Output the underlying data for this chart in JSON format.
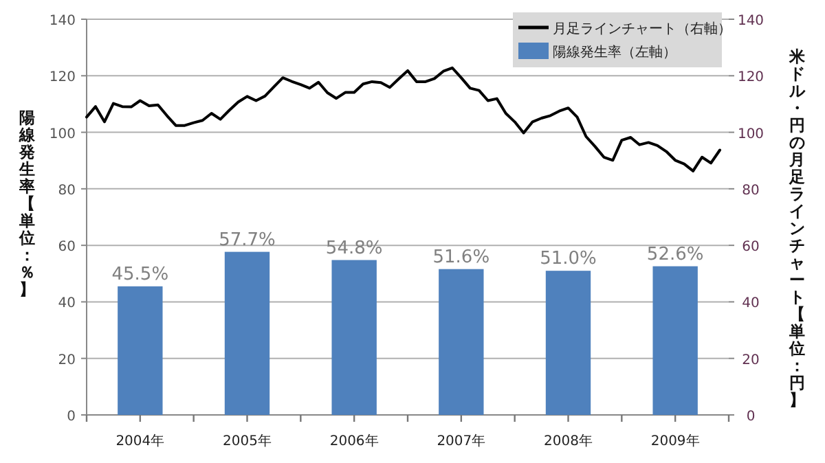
{
  "chart_data": {
    "type": "bar",
    "ylabel": "陽線発生率【単位：％】",
    "y2label": "米ドル・円の月足ラインチャート【単位：円】",
    "xlim": [
      "2004-01",
      "2010-01"
    ],
    "xticks": [
      {
        "value": "2004-01",
        "label": null
      },
      {
        "value": "2004-07",
        "label": "2004年"
      },
      {
        "value": "2005-01",
        "label": null
      },
      {
        "value": "2005-07",
        "label": "2005年"
      },
      {
        "value": "2006-01",
        "label": null
      },
      {
        "value": "2006-07",
        "label": "2006年"
      },
      {
        "value": "2007-01",
        "label": null
      },
      {
        "value": "2007-07",
        "label": "2007年"
      },
      {
        "value": "2008-01",
        "label": null
      },
      {
        "value": "2008-07",
        "label": "2008年"
      },
      {
        "value": "2009-01",
        "label": null
      },
      {
        "value": "2009-07",
        "label": "2009年"
      },
      {
        "value": "2010-01",
        "label": null
      }
    ],
    "series": [
      {
        "name": "月足ラインチャート（右軸）",
        "type": "line",
        "axis": "y2",
        "color": "#000000",
        "x": [
          "2004-01",
          "2004-02",
          "2004-03",
          "2004-04",
          "2004-05",
          "2004-06",
          "2004-07",
          "2004-08",
          "2004-09",
          "2004-10",
          "2004-11",
          "2004-12",
          "2005-01",
          "2005-02",
          "2005-03",
          "2005-04",
          "2005-05",
          "2005-06",
          "2005-07",
          "2005-08",
          "2005-09",
          "2005-10",
          "2005-11",
          "2005-12",
          "2006-01",
          "2006-02",
          "2006-03",
          "2006-04",
          "2006-05",
          "2006-06",
          "2006-07",
          "2006-08",
          "2006-09",
          "2006-10",
          "2006-11",
          "2006-12",
          "2007-01",
          "2007-02",
          "2007-03",
          "2007-04",
          "2007-05",
          "2007-06",
          "2007-07",
          "2007-08",
          "2007-09",
          "2007-10",
          "2007-11",
          "2007-12",
          "2008-01",
          "2008-02",
          "2008-03",
          "2008-04",
          "2008-05",
          "2008-06",
          "2008-07",
          "2008-08",
          "2008-09",
          "2008-10",
          "2008-11",
          "2008-12",
          "2009-01",
          "2009-02",
          "2009-03",
          "2009-04",
          "2009-05",
          "2009-06",
          "2009-07",
          "2009-08",
          "2009-09",
          "2009-10",
          "2009-11",
          "2009-12"
        ],
        "values": [
          105.4,
          109.1,
          103.7,
          110.2,
          109.1,
          109,
          111.2,
          109.4,
          109.7,
          105.9,
          102.4,
          102.4,
          103.4,
          104.2,
          106.7,
          104.6,
          107.8,
          110.7,
          112.7,
          111.2,
          112.8,
          116.1,
          119.3,
          118,
          116.9,
          115.6,
          117.7,
          114,
          112,
          114.1,
          114.1,
          117.1,
          117.9,
          117.6,
          115.9,
          118.9,
          121.8,
          117.9,
          117.9,
          119,
          121.6,
          122.8,
          119.3,
          115.6,
          114.8,
          111.2,
          111.9,
          106.7,
          103.7,
          99.8,
          103.7,
          105,
          105.9,
          107.5,
          108.6,
          105.4,
          98.5,
          95,
          91.2,
          90.1,
          97.2,
          98.2,
          95.6,
          96.4,
          95.3,
          93.2,
          90.1,
          88.8,
          86.3,
          91.2,
          89.1,
          93.7
        ]
      },
      {
        "name": "陽線発生率（左軸）",
        "color": "#4f81bd",
        "x": [
          "2004-07",
          "2005-07",
          "2006-07",
          "2007-07",
          "2008-07",
          "2009-07"
        ],
        "values": [
          45.5,
          57.7,
          54.8,
          51.6,
          51.0,
          52.6
        ],
        "value_labels": [
          "45.5%",
          "57.7%",
          "54.8%",
          "51.6%",
          "51.0%",
          "52.6%"
        ]
      }
    ],
    "ylim": [
      0,
      140
    ],
    "yticks": [
      0,
      20,
      40,
      60,
      80,
      100,
      120,
      140
    ],
    "y2lim": [
      0,
      140
    ],
    "y2ticks": [
      0,
      20,
      40,
      60,
      80,
      100,
      120,
      140
    ],
    "grid": "y",
    "legend": "top right"
  }
}
